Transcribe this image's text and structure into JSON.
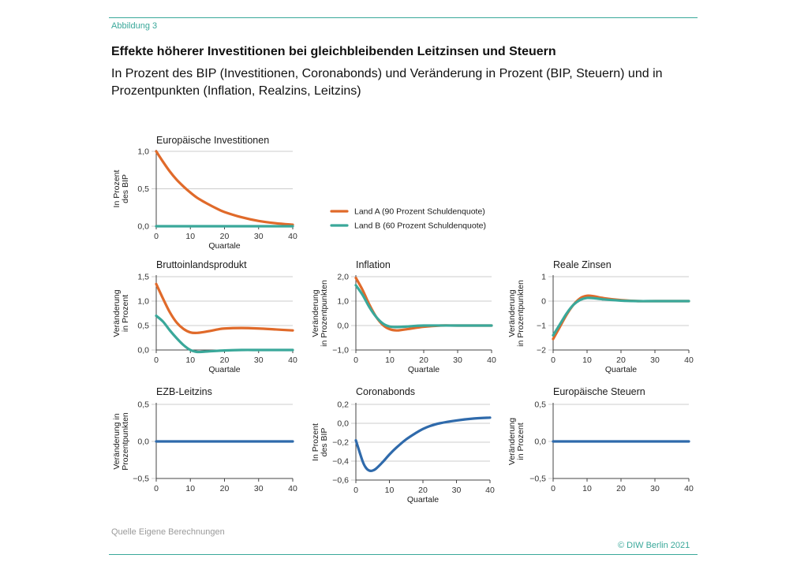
{
  "header": {
    "figure_label": "Abbildung 3",
    "title": "Effekte höherer Investitionen bei gleichbleibenden Leitzinsen und Steuern",
    "subtitle": "In Prozent des BIP (Investitionen, Coronabonds) und Veränderung in Prozent (BIP, Steuern) und in Prozentpunkten (Inflation, Realzins, Leitzins)"
  },
  "footer": {
    "source": "Quelle Eigene Berechnungen",
    "copyright": "© DIW Berlin 2021"
  },
  "legend": [
    {
      "name": "Land A (90 Prozent Schuldenquote)",
      "color": "#e06a2a"
    },
    {
      "name": "Land B (60 Prozent Schuldenquote)",
      "color": "#3aa89a"
    }
  ],
  "colors": {
    "land_a": "#e06a2a",
    "land_b": "#3aa89a",
    "single": "#2f6aab",
    "grid": "#cccccc",
    "accent": "#3aa89a"
  },
  "chart_data": [
    {
      "type": "line",
      "title": "Europäische Investitionen",
      "xlabel": "Quartale",
      "ylabel": "In Prozent des BIP",
      "xlim": [
        0,
        40
      ],
      "ylim": [
        0,
        1
      ],
      "xticks": [
        0,
        10,
        20,
        30,
        40
      ],
      "yticks": [
        0,
        0.5,
        1
      ],
      "ytick_labels": [
        "0,0",
        "0,5",
        "1,0"
      ],
      "grid": true,
      "series": [
        {
          "name": "Land A (90 Prozent Schuldenquote)",
          "color": "#e06a2a",
          "x": [
            0,
            2,
            4,
            6,
            8,
            10,
            12,
            15,
            18,
            20,
            25,
            30,
            35,
            40
          ],
          "y": [
            1.0,
            0.86,
            0.73,
            0.62,
            0.53,
            0.45,
            0.38,
            0.3,
            0.23,
            0.19,
            0.12,
            0.07,
            0.04,
            0.02
          ]
        },
        {
          "name": "Land B (60 Prozent Schuldenquote)",
          "color": "#3aa89a",
          "x": [
            0,
            40
          ],
          "y": [
            0.0,
            0.0
          ]
        }
      ]
    },
    {
      "type": "line",
      "title": "Bruttoinlandsprodukt",
      "xlabel": "Quartale",
      "ylabel": "Veränderung in Prozent",
      "xlim": [
        0,
        40
      ],
      "ylim": [
        0,
        1.5
      ],
      "xticks": [
        0,
        10,
        20,
        30,
        40
      ],
      "yticks": [
        0,
        0.5,
        1,
        1.5
      ],
      "ytick_labels": [
        "0,0",
        "0,5",
        "1,0",
        "1,5"
      ],
      "grid": true,
      "series": [
        {
          "name": "Land A (90 Prozent Schuldenquote)",
          "color": "#e06a2a",
          "x": [
            0,
            2,
            4,
            6,
            8,
            10,
            12,
            15,
            18,
            20,
            25,
            30,
            35,
            40
          ],
          "y": [
            1.35,
            1.05,
            0.77,
            0.56,
            0.43,
            0.36,
            0.35,
            0.38,
            0.42,
            0.44,
            0.45,
            0.44,
            0.42,
            0.4
          ]
        },
        {
          "name": "Land B (60 Prozent Schuldenquote)",
          "color": "#3aa89a",
          "x": [
            0,
            2,
            4,
            6,
            8,
            10,
            12,
            15,
            20,
            25,
            30,
            35,
            40
          ],
          "y": [
            0.7,
            0.58,
            0.4,
            0.24,
            0.1,
            0.0,
            -0.04,
            -0.03,
            -0.01,
            0.0,
            0.0,
            0.0,
            0.0
          ]
        }
      ]
    },
    {
      "type": "line",
      "title": "Inflation",
      "xlabel": "Quartale",
      "ylabel": "Veränderung in Prozentpunkten",
      "xlim": [
        0,
        40
      ],
      "ylim": [
        -1,
        2
      ],
      "xticks": [
        0,
        10,
        20,
        30,
        40
      ],
      "yticks": [
        -1,
        0,
        1,
        2
      ],
      "ytick_labels": [
        "−1,0",
        "0,0",
        "1,0",
        "2,0"
      ],
      "grid": true,
      "series": [
        {
          "name": "Land A (90 Prozent Schuldenquote)",
          "color": "#e06a2a",
          "x": [
            0,
            2,
            4,
            6,
            8,
            10,
            12,
            15,
            20,
            25,
            30,
            40
          ],
          "y": [
            1.95,
            1.45,
            0.85,
            0.35,
            0.02,
            -0.15,
            -0.2,
            -0.15,
            -0.05,
            0.0,
            0.0,
            0.0
          ]
        },
        {
          "name": "Land B (60 Prozent Schuldenquote)",
          "color": "#3aa89a",
          "x": [
            0,
            2,
            4,
            6,
            8,
            10,
            12,
            15,
            20,
            30,
            40
          ],
          "y": [
            1.65,
            1.25,
            0.75,
            0.35,
            0.08,
            -0.04,
            -0.06,
            -0.04,
            0.0,
            0.0,
            0.0
          ]
        }
      ]
    },
    {
      "type": "line",
      "title": "Reale Zinsen",
      "xlabel": "Quartale",
      "ylabel": "Veränderung in Prozentpunkten",
      "xlim": [
        0,
        40
      ],
      "ylim": [
        -2,
        1
      ],
      "xticks": [
        0,
        10,
        20,
        30,
        40
      ],
      "yticks": [
        -2,
        -1,
        0,
        1
      ],
      "ytick_labels": [
        "−2",
        "−1",
        "0",
        "1"
      ],
      "grid": true,
      "series": [
        {
          "name": "Land A (90 Prozent Schuldenquote)",
          "color": "#e06a2a",
          "x": [
            0,
            2,
            4,
            6,
            8,
            10,
            12,
            15,
            20,
            25,
            30,
            40
          ],
          "y": [
            -1.55,
            -1.05,
            -0.55,
            -0.15,
            0.12,
            0.22,
            0.2,
            0.12,
            0.04,
            0.0,
            0.0,
            0.0
          ]
        },
        {
          "name": "Land B (60 Prozent Schuldenquote)",
          "color": "#3aa89a",
          "x": [
            0,
            2,
            4,
            6,
            8,
            10,
            12,
            15,
            20,
            25,
            30,
            40
          ],
          "y": [
            -1.4,
            -0.95,
            -0.5,
            -0.15,
            0.05,
            0.13,
            0.12,
            0.07,
            0.02,
            0.0,
            0.0,
            0.0
          ]
        }
      ]
    },
    {
      "type": "line",
      "title": "EZB-Leitzins",
      "xlabel": "",
      "ylabel": "Veränderung in Prozentpunkten",
      "xlim": [
        0,
        40
      ],
      "ylim": [
        -0.5,
        0.5
      ],
      "xticks": [
        0,
        10,
        20,
        30,
        40
      ],
      "yticks": [
        -0.5,
        0,
        0.5
      ],
      "ytick_labels": [
        "−0,5",
        "0,0",
        "0,5"
      ],
      "grid": true,
      "series": [
        {
          "color": "#2f6aab",
          "x": [
            0,
            40
          ],
          "y": [
            0.0,
            0.0
          ]
        }
      ]
    },
    {
      "type": "line",
      "title": "Coronabonds",
      "xlabel": "Quartale",
      "ylabel": "In Prozent des BIP",
      "xlim": [
        0,
        40
      ],
      "ylim": [
        -0.6,
        0.2
      ],
      "xticks": [
        0,
        10,
        20,
        30,
        40
      ],
      "yticks": [
        -0.6,
        -0.4,
        -0.2,
        0,
        0.2
      ],
      "ytick_labels": [
        "−0,6",
        "−0,4",
        "−0,2",
        "0,0",
        "0,2"
      ],
      "grid": true,
      "series": [
        {
          "color": "#2f6aab",
          "x": [
            0,
            2,
            3,
            4,
            5,
            6,
            8,
            10,
            12,
            15,
            18,
            20,
            22,
            25,
            30,
            35,
            40
          ],
          "y": [
            -0.18,
            -0.4,
            -0.47,
            -0.5,
            -0.5,
            -0.48,
            -0.41,
            -0.33,
            -0.26,
            -0.17,
            -0.1,
            -0.06,
            -0.03,
            0.0,
            0.03,
            0.05,
            0.06
          ]
        }
      ]
    },
    {
      "type": "line",
      "title": "Europäische Steuern",
      "xlabel": "",
      "ylabel": "Veränderung in Prozent",
      "xlim": [
        0,
        40
      ],
      "ylim": [
        -0.5,
        0.5
      ],
      "xticks": [
        0,
        10,
        20,
        30,
        40
      ],
      "yticks": [
        -0.5,
        0,
        0.5
      ],
      "ytick_labels": [
        "−0,5",
        "0,0",
        "0,5"
      ],
      "grid": true,
      "series": [
        {
          "color": "#2f6aab",
          "x": [
            0,
            40
          ],
          "y": [
            0.0,
            0.0
          ]
        }
      ]
    }
  ]
}
